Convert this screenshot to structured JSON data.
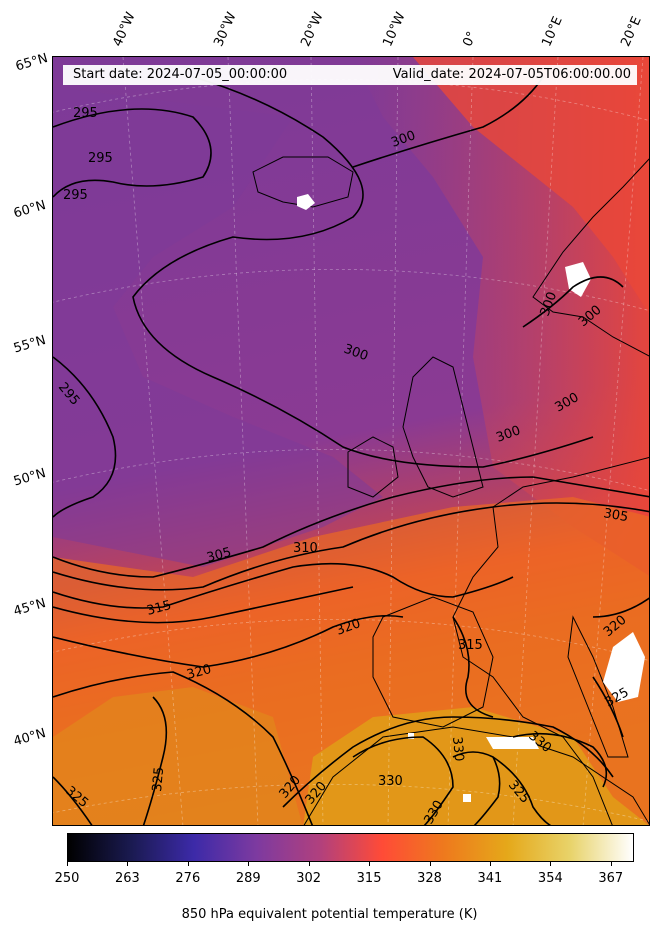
{
  "header": {
    "start_date": "Start date: 2024-07-05_00:00:00",
    "valid_date": "Valid_date: 2024-07-05T06:00:00.00"
  },
  "longitude_labels": [
    "40°W",
    "30°W",
    "20°W",
    "10°W",
    "0°",
    "10°E",
    "20°E"
  ],
  "latitude_labels": [
    "65°N",
    "60°N",
    "55°N",
    "50°N",
    "45°N",
    "40°N"
  ],
  "contour_labels": [
    "295",
    "295",
    "295",
    "295",
    "300",
    "300",
    "300",
    "300",
    "300",
    "300",
    "305",
    "305",
    "310",
    "315",
    "315",
    "320",
    "320",
    "320",
    "320",
    "320",
    "325",
    "325",
    "325",
    "325",
    "330",
    "330",
    "330",
    "330"
  ],
  "colorbar": {
    "ticks": [
      "250",
      "263",
      "276",
      "289",
      "302",
      "315",
      "328",
      "341",
      "354",
      "367"
    ],
    "label": "850 hPa equivalent potential temperature (K)",
    "colormap": "CMRmap-like",
    "range": [
      250,
      372
    ],
    "colors": [
      "#000000",
      "#1a1a50",
      "#3c2aa8",
      "#7d3aa0",
      "#b0407e",
      "#ff4b37",
      "#ee7a1d",
      "#e5a81a",
      "#e8d36a",
      "#ffffff"
    ]
  },
  "map": {
    "projection": "Lambert conformal",
    "contour_variable": "equivalent potential temperature",
    "contour_interval": 5,
    "fill_colors": {
      "cold_purple": "#7e3a97",
      "mid_magenta": "#a9406f",
      "warm_red": "#ef4a37",
      "hot_orange": "#e8731d",
      "gold": "#e0a11a",
      "land_lines": "#000000",
      "snow": "#ffffff"
    }
  }
}
